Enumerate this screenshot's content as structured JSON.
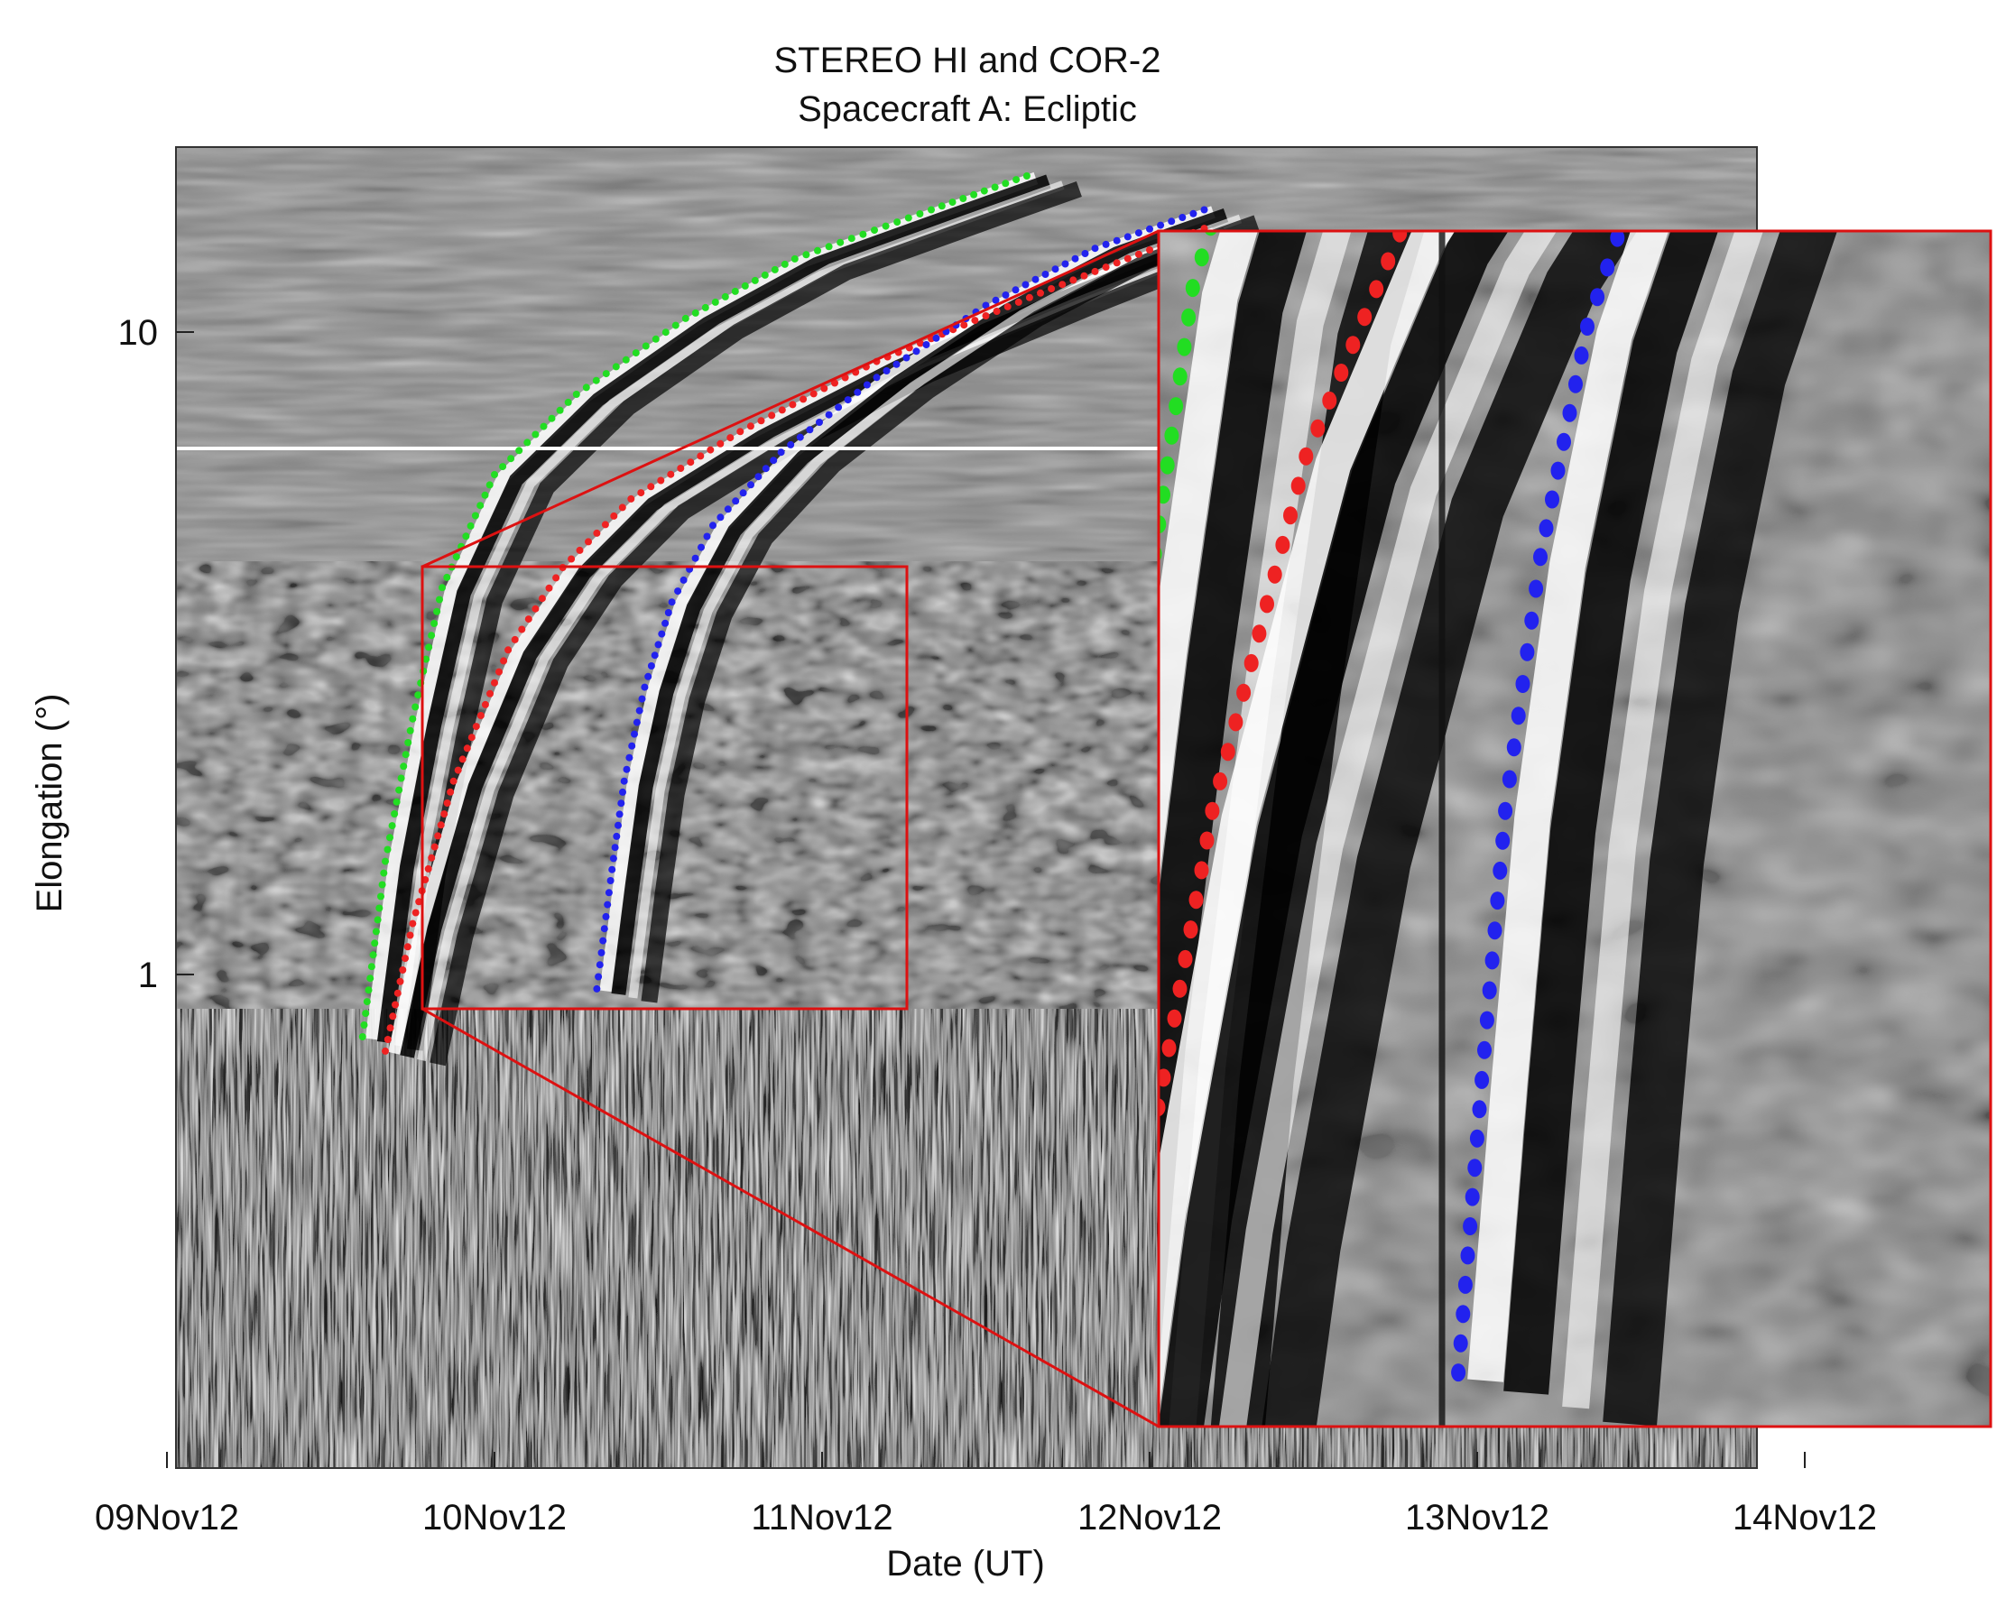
{
  "chart_data": {
    "type": "scatter",
    "title": "STEREO HI and COR-2",
    "subtitle": "Spacecraft A: Ecliptic",
    "xlabel": "Date (UT)",
    "ylabel": "Elongation (°)",
    "x_ticks": [
      "09Nov12",
      "10Nov12",
      "11Nov12",
      "12Nov12",
      "13Nov12",
      "14Nov12"
    ],
    "y_ticks": [
      "10",
      "1"
    ],
    "y_scale": "log",
    "xlim": [
      "2012-11-09T00:00",
      "2012-11-14T00:00"
    ],
    "ylim": [
      0.75,
      35
    ],
    "grid": false,
    "legend": false,
    "series": [
      {
        "color": "#22dd22",
        "points": [
          [
            "2012-11-09T14:20",
            0.8
          ],
          [
            "2012-11-09T16:00",
            1.5
          ],
          [
            "2012-11-09T18:00",
            2.5
          ],
          [
            "2012-11-09T20:10",
            4.0
          ],
          [
            "2012-11-10T00:00",
            6.0
          ],
          [
            "2012-11-10T06:00",
            8.0
          ],
          [
            "2012-11-10T14:00",
            10.5
          ],
          [
            "2012-11-10T22:00",
            13.0
          ],
          [
            "2012-11-11T08:00",
            15.5
          ],
          [
            "2012-11-11T15:00",
            17.5
          ]
        ]
      },
      {
        "color": "#ee2222",
        "points": [
          [
            "2012-11-09T16:00",
            0.76
          ],
          [
            "2012-11-09T18:00",
            1.2
          ],
          [
            "2012-11-09T21:00",
            2.0
          ],
          [
            "2012-11-10T01:00",
            3.2
          ],
          [
            "2012-11-10T05:00",
            4.3
          ],
          [
            "2012-11-10T10:00",
            5.5
          ],
          [
            "2012-11-10T18:00",
            7.0
          ],
          [
            "2012-11-11T04:00",
            9.0
          ],
          [
            "2012-11-11T16:00",
            11.5
          ],
          [
            "2012-11-12T04:00",
            14.5
          ]
        ]
      },
      {
        "color": "#2222ee",
        "points": [
          [
            "2012-11-10T07:30",
            0.95
          ],
          [
            "2012-11-10T08:30",
            1.4
          ],
          [
            "2012-11-10T09:30",
            2.0
          ],
          [
            "2012-11-10T11:00",
            2.8
          ],
          [
            "2012-11-10T13:00",
            3.8
          ],
          [
            "2012-11-10T16:00",
            5.0
          ],
          [
            "2012-11-10T21:00",
            6.5
          ],
          [
            "2012-11-11T04:00",
            8.5
          ],
          [
            "2012-11-11T12:00",
            11.0
          ],
          [
            "2012-11-11T20:00",
            13.5
          ],
          [
            "2012-11-12T04:00",
            15.5
          ]
        ]
      }
    ],
    "background_colors": [
      "#000000",
      "#ffffff",
      "#808080"
    ],
    "inset_border_color": "#dd1111"
  }
}
